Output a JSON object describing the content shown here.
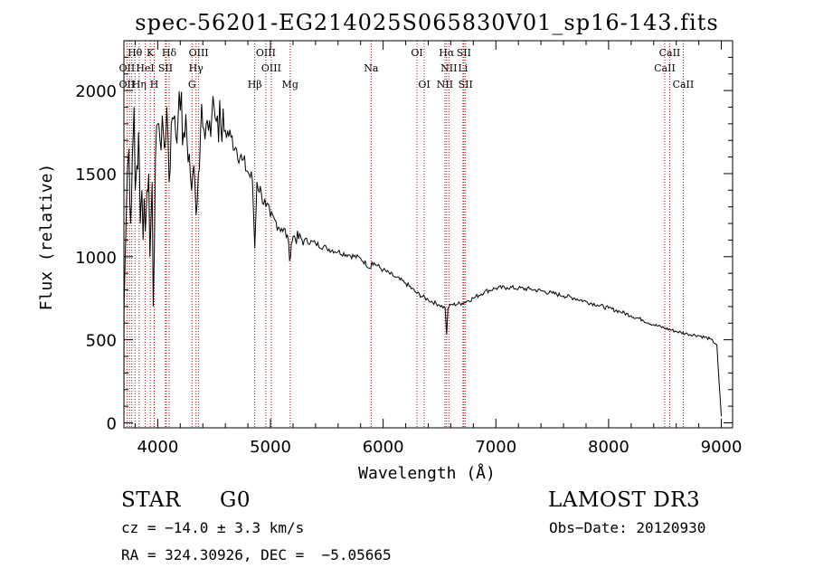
{
  "chart_data": {
    "type": "line",
    "title": "spec-56201-EG214025S065830V01_sp16-143.fits",
    "xlabel": "Wavelength (Å)",
    "ylabel": "Flux (relative)",
    "xlim": [
      3700,
      9100
    ],
    "ylim": [
      -30,
      2300
    ],
    "xticks": [
      4000,
      5000,
      6000,
      7000,
      8000,
      9000
    ],
    "yticks": [
      0,
      500,
      1000,
      1500,
      2000
    ],
    "grid": false,
    "series": [
      {
        "name": "flux",
        "points": [
          [
            3700,
            0
          ],
          [
            3702,
            700
          ],
          [
            3715,
            1100
          ],
          [
            3730,
            1500
          ],
          [
            3745,
            1650
          ],
          [
            3760,
            1200
          ],
          [
            3775,
            1600
          ],
          [
            3790,
            1900
          ],
          [
            3800,
            1400
          ],
          [
            3815,
            1550
          ],
          [
            3830,
            1750
          ],
          [
            3845,
            1200
          ],
          [
            3860,
            1400
          ],
          [
            3870,
            1100
          ],
          [
            3880,
            1350
          ],
          [
            3890,
            1150
          ],
          [
            3905,
            1400
          ],
          [
            3920,
            1500
          ],
          [
            3930,
            1000
          ],
          [
            3940,
            1200
          ],
          [
            3950,
            1450
          ],
          [
            3960,
            700
          ],
          [
            3970,
            1050
          ],
          [
            3980,
            1600
          ],
          [
            4000,
            1800
          ],
          [
            4020,
            1700
          ],
          [
            4040,
            1850
          ],
          [
            4060,
            1650
          ],
          [
            4080,
            1900
          ],
          [
            4101,
            1450
          ],
          [
            4120,
            1800
          ],
          [
            4150,
            1850
          ],
          [
            4180,
            1820
          ],
          [
            4200,
            1880
          ],
          [
            4230,
            1750
          ],
          [
            4260,
            1700
          ],
          [
            4280,
            1620
          ],
          [
            4300,
            1400
          ],
          [
            4320,
            1550
          ],
          [
            4340,
            1250
          ],
          [
            4360,
            1500
          ],
          [
            4380,
            1750
          ],
          [
            4400,
            1780
          ],
          [
            4430,
            1800
          ],
          [
            4460,
            1820
          ],
          [
            4480,
            1850
          ],
          [
            4500,
            1900
          ],
          [
            4530,
            1850
          ],
          [
            4560,
            1780
          ],
          [
            4600,
            1760
          ],
          [
            4650,
            1720
          ],
          [
            4700,
            1650
          ],
          [
            4750,
            1580
          ],
          [
            4800,
            1510
          ],
          [
            4840,
            1460
          ],
          [
            4861,
            1050
          ],
          [
            4880,
            1450
          ],
          [
            4920,
            1380
          ],
          [
            4960,
            1300
          ],
          [
            5000,
            1240
          ],
          [
            5050,
            1210
          ],
          [
            5100,
            1170
          ],
          [
            5150,
            1130
          ],
          [
            5170,
            980
          ],
          [
            5185,
            1080
          ],
          [
            5200,
            1120
          ],
          [
            5300,
            1100
          ],
          [
            5400,
            1080
          ],
          [
            5500,
            1050
          ],
          [
            5600,
            1030
          ],
          [
            5700,
            1010
          ],
          [
            5800,
            990
          ],
          [
            5890,
            930
          ],
          [
            5900,
            970
          ],
          [
            6000,
            920
          ],
          [
            6100,
            880
          ],
          [
            6200,
            840
          ],
          [
            6300,
            780
          ],
          [
            6400,
            740
          ],
          [
            6500,
            710
          ],
          [
            6550,
            690
          ],
          [
            6563,
            530
          ],
          [
            6575,
            690
          ],
          [
            6600,
            710
          ],
          [
            6700,
            720
          ],
          [
            6800,
            750
          ],
          [
            6900,
            790
          ],
          [
            7000,
            810
          ],
          [
            7100,
            815
          ],
          [
            7200,
            810
          ],
          [
            7300,
            805
          ],
          [
            7400,
            795
          ],
          [
            7500,
            780
          ],
          [
            7600,
            765
          ],
          [
            7700,
            750
          ],
          [
            7800,
            730
          ],
          [
            7900,
            710
          ],
          [
            8000,
            690
          ],
          [
            8100,
            670
          ],
          [
            8200,
            645
          ],
          [
            8300,
            620
          ],
          [
            8400,
            590
          ],
          [
            8500,
            570
          ],
          [
            8600,
            550
          ],
          [
            8700,
            535
          ],
          [
            8800,
            525
          ],
          [
            8900,
            505
          ],
          [
            8960,
            470
          ],
          [
            8980,
            250
          ],
          [
            9000,
            40
          ]
        ]
      }
    ],
    "line_markers": [
      {
        "label": "Hδ",
        "wavelength": 4101,
        "row": 1
      },
      {
        "label": "OII",
        "wavelength": 3727,
        "row": 2
      },
      {
        "label": "OIII",
        "wavelength": 4363,
        "row": 1
      },
      {
        "label": "OIII",
        "wavelength": 4959,
        "row": 1
      },
      {
        "label": "OIII",
        "wavelength": 5007,
        "row": 2
      },
      {
        "label": "OI",
        "wavelength": 6300,
        "row": 1
      },
      {
        "label": "OI",
        "wavelength": 6364,
        "row": 3
      },
      {
        "label": "Hα",
        "wavelength": 6563,
        "row": 1
      },
      {
        "label": "SII",
        "wavelength": 6716,
        "row": 1
      },
      {
        "label": "NII",
        "wavelength": 6583,
        "row": 2
      },
      {
        "label": "Li",
        "wavelength": 6708,
        "row": 2
      },
      {
        "label": "NII",
        "wavelength": 6548,
        "row": 3
      },
      {
        "label": "SII",
        "wavelength": 6731,
        "row": 3
      },
      {
        "label": "Hγ",
        "wavelength": 4340,
        "row": 2
      },
      {
        "label": "G",
        "wavelength": 4304,
        "row": 3
      },
      {
        "label": "Hβ",
        "wavelength": 4861,
        "row": 3
      },
      {
        "label": "Mg",
        "wavelength": 5175,
        "row": 3
      },
      {
        "label": "Na",
        "wavelength": 5893,
        "row": 2
      },
      {
        "label": "CaII",
        "wavelength": 8542,
        "row": 1
      },
      {
        "label": "CaII",
        "wavelength": 8498,
        "row": 2
      },
      {
        "label": "CaII",
        "wavelength": 8662,
        "row": 3
      }
    ],
    "crowded_labels": [
      {
        "label": "Hθ",
        "wavelength": 3798,
        "row": 1
      },
      {
        "label": "K",
        "wavelength": 3934,
        "row": 1
      },
      {
        "label": "H",
        "wavelength": 3969,
        "row": 3
      },
      {
        "label": "HeI",
        "wavelength": 3889,
        "row": 2
      },
      {
        "label": "SII",
        "wavelength": 4069,
        "row": 2
      },
      {
        "label": "OII",
        "wavelength": 3727,
        "row": 3
      },
      {
        "label": "Hη",
        "wavelength": 3835,
        "row": 3
      }
    ],
    "extra_marker_lines": [
      3750,
      3770,
      3889,
      3934,
      3969,
      4069,
      4076,
      4101,
      4304,
      4340,
      4363,
      4861,
      4959,
      5007,
      5175,
      5893,
      6300,
      6364,
      6548,
      6563,
      6583,
      6708,
      6716,
      6731,
      8498,
      8542,
      8662
    ]
  },
  "info": {
    "class": "STAR",
    "subclass": "G0",
    "survey": "LAMOST DR3",
    "cz": "cz = −14.0 ± 3.3 km/s",
    "obs_date": "Obs−Date: 20120930",
    "radec": "RA = 324.30926, DEC =  −5.05665"
  },
  "colors": {
    "spectrum": "#000000",
    "marker_line": "#c00000",
    "axis": "#000000"
  }
}
